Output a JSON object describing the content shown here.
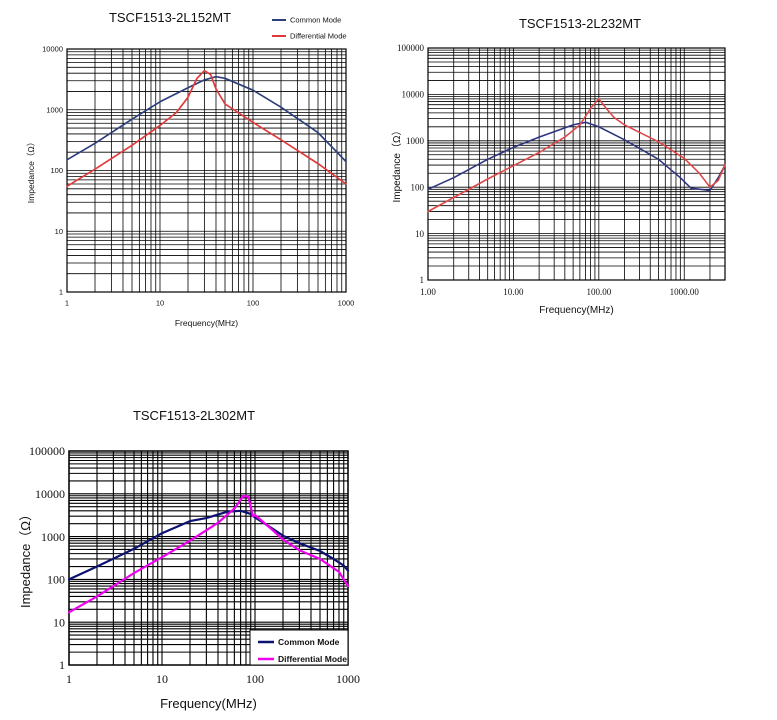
{
  "colors": {
    "common_mode_1": "#2b3f7a",
    "differential_mode_1": "#e03a3a",
    "common_mode_2": "#2f3580",
    "differential_mode_2": "#e04848",
    "common_mode_3": "#0c1270",
    "differential_mode_3": "#f000f0"
  },
  "chart_data": [
    {
      "type": "line",
      "title": "TSCF1513-2L152MT",
      "xlabel": "Frequency(MHz)",
      "ylabel": "Impedance（Ω）",
      "xscale": "log",
      "yscale": "log",
      "xlim": [
        1,
        1000
      ],
      "ylim": [
        1,
        10000
      ],
      "xticks": [
        1,
        10,
        100,
        1000
      ],
      "xtick_labels": [
        "1",
        "10",
        "100",
        "1000"
      ],
      "yticks": [
        1,
        10,
        100,
        1000,
        10000
      ],
      "ytick_labels": [
        "1",
        "10",
        "100",
        "1000",
        "10000"
      ],
      "legend_position": "top-right",
      "series": [
        {
          "name": "Common Mode",
          "x": [
            1,
            2,
            5,
            10,
            20,
            30,
            40,
            50,
            100,
            200,
            500,
            800,
            1000
          ],
          "y": [
            150,
            280,
            700,
            1350,
            2300,
            3100,
            3500,
            3300,
            2100,
            1100,
            420,
            200,
            140
          ]
        },
        {
          "name": "Differential Mode",
          "x": [
            1,
            2,
            5,
            10,
            15,
            20,
            25,
            30,
            35,
            40,
            50,
            100,
            200,
            500,
            1000
          ],
          "y": [
            55,
            105,
            260,
            550,
            900,
            1600,
            3300,
            4400,
            3800,
            2200,
            1250,
            620,
            320,
            130,
            60
          ]
        }
      ]
    },
    {
      "type": "line",
      "title": "TSCF1513-2L232MT",
      "xlabel": "Frequency(MHz)",
      "ylabel": "Impedance（Ω）",
      "xscale": "log",
      "yscale": "log",
      "xlim": [
        1,
        3000
      ],
      "ylim": [
        1,
        100000
      ],
      "xticks": [
        1,
        10,
        100,
        1000
      ],
      "xtick_labels": [
        "1.00",
        "10.00",
        "100.00",
        "1000.00"
      ],
      "yticks": [
        1,
        10,
        100,
        1000,
        10000,
        100000
      ],
      "ytick_labels": [
        "1",
        "10",
        "100",
        "1000",
        "10000",
        "100000"
      ],
      "legend_position": "none",
      "series": [
        {
          "name": "Common Mode",
          "x": [
            1,
            2,
            5,
            10,
            20,
            50,
            70,
            100,
            200,
            500,
            900,
            1200,
            2000,
            2500,
            3000
          ],
          "y": [
            90,
            160,
            400,
            720,
            1200,
            2200,
            2500,
            2000,
            1050,
            400,
            160,
            95,
            85,
            160,
            300
          ]
        },
        {
          "name": "Differential Mode",
          "x": [
            1,
            2,
            5,
            10,
            20,
            40,
            60,
            80,
            100,
            120,
            150,
            200,
            500,
            1000,
            1500,
            2000,
            2500,
            3000
          ],
          "y": [
            30,
            60,
            150,
            290,
            560,
            1200,
            2200,
            5000,
            8000,
            5200,
            3200,
            2200,
            950,
            420,
            200,
            100,
            140,
            300
          ]
        }
      ]
    },
    {
      "type": "line",
      "title": "TSCF1513-2L302MT",
      "xlabel": "Frequency(MHz)",
      "ylabel": "Impedance（Ω）",
      "xscale": "log",
      "yscale": "log",
      "xlim": [
        1,
        1000
      ],
      "ylim": [
        1,
        100000
      ],
      "xticks": [
        1,
        10,
        100,
        1000
      ],
      "xtick_labels": [
        "1",
        "10",
        "100",
        "1000"
      ],
      "yticks": [
        1,
        10,
        100,
        1000,
        10000,
        100000
      ],
      "ytick_labels": [
        "1",
        "10",
        "100",
        "1000",
        "10000",
        "100000"
      ],
      "legend_position": "bottom-right",
      "series": [
        {
          "name": "Common Mode",
          "x": [
            1,
            2,
            5,
            10,
            20,
            30,
            50,
            70,
            90,
            100,
            150,
            200,
            300,
            500,
            700,
            900,
            1000
          ],
          "y": [
            100,
            200,
            520,
            1200,
            2300,
            2700,
            3800,
            4000,
            3400,
            2800,
            1600,
            1050,
            700,
            460,
            300,
            210,
            160
          ]
        },
        {
          "name": "Differential Mode",
          "x": [
            1,
            2,
            5,
            10,
            20,
            40,
            60,
            75,
            85,
            95,
            100,
            150,
            200,
            300,
            500,
            800,
            1000
          ],
          "y": [
            17,
            40,
            140,
            330,
            800,
            2100,
            4500,
            9000,
            8500,
            3000,
            3200,
            1500,
            850,
            480,
            300,
            150,
            70
          ]
        }
      ]
    }
  ]
}
